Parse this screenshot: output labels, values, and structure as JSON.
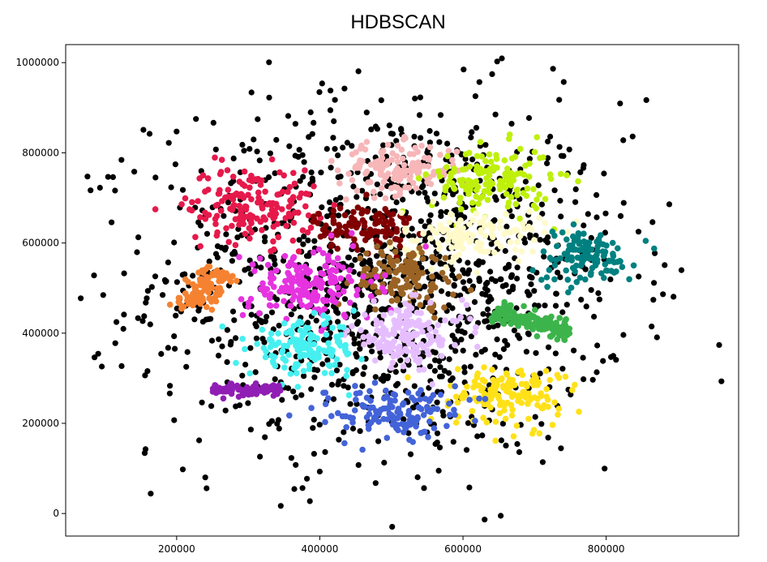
{
  "chart_data": {
    "type": "scatter",
    "title": "HDBSCAN",
    "xlim": [
      45000,
      985000
    ],
    "ylim": [
      -50000,
      1040000
    ],
    "x_ticks": [
      200000,
      400000,
      600000,
      800000
    ],
    "y_ticks": [
      0,
      200000,
      400000,
      600000,
      800000,
      1000000
    ],
    "x_tick_labels": [
      "200000",
      "400000",
      "600000",
      "800000"
    ],
    "y_tick_labels": [
      "0",
      "200000",
      "400000",
      "600000",
      "800000",
      "1000000"
    ],
    "grid": false,
    "noise_color": "#000000",
    "clusters": [
      {
        "id": "noise",
        "color": "#000000",
        "kind": "noise",
        "cx": 500000,
        "cy": 520000,
        "sx": 165000,
        "sy": 200000,
        "n": 1300
      },
      {
        "id": "c-pink-light",
        "color": "#f7b6b8",
        "kind": "blob",
        "cx": 510000,
        "cy": 765000,
        "sx": 42000,
        "sy": 28000,
        "n": 150
      },
      {
        "id": "c-lime",
        "color": "#bef00c",
        "kind": "blob",
        "cx": 640000,
        "cy": 740000,
        "sx": 42000,
        "sy": 38000,
        "n": 150
      },
      {
        "id": "c-crimson",
        "color": "#e6194b",
        "kind": "blob",
        "cx": 305000,
        "cy": 685000,
        "sx": 45000,
        "sy": 42000,
        "n": 170
      },
      {
        "id": "c-maroon",
        "color": "#800000",
        "kind": "blob",
        "cx": 462000,
        "cy": 635000,
        "sx": 35000,
        "sy": 25000,
        "n": 120
      },
      {
        "id": "c-cream",
        "color": "#fffac8",
        "kind": "blob",
        "cx": 615000,
        "cy": 615000,
        "sx": 50000,
        "sy": 28000,
        "n": 130
      },
      {
        "id": "c-teal",
        "color": "#008080",
        "kind": "blob",
        "cx": 770000,
        "cy": 570000,
        "sx": 35000,
        "sy": 30000,
        "n": 120
      },
      {
        "id": "c-brown",
        "color": "#9a6324",
        "kind": "blob",
        "cx": 520000,
        "cy": 525000,
        "sx": 35000,
        "sy": 35000,
        "n": 130
      },
      {
        "id": "c-magenta",
        "color": "#e633e0",
        "kind": "blob",
        "cx": 385000,
        "cy": 505000,
        "sx": 45000,
        "sy": 40000,
        "n": 180
      },
      {
        "id": "c-orange",
        "color": "#f58231",
        "kind": "line",
        "x0": 215000,
        "y0": 450000,
        "x1": 262000,
        "y1": 540000,
        "width": 12000,
        "n": 100
      },
      {
        "id": "c-green",
        "color": "#3cb44b",
        "kind": "line",
        "x0": 645000,
        "y0": 450000,
        "x1": 750000,
        "y1": 402000,
        "width": 11000,
        "n": 180
      },
      {
        "id": "c-lavender",
        "color": "#e6beff",
        "kind": "blob",
        "cx": 522000,
        "cy": 395000,
        "sx": 40000,
        "sy": 35000,
        "n": 150
      },
      {
        "id": "c-cyan",
        "color": "#46f0f0",
        "kind": "blob",
        "cx": 378000,
        "cy": 365000,
        "sx": 38000,
        "sy": 30000,
        "n": 140
      },
      {
        "id": "c-purple",
        "color": "#911eb4",
        "kind": "line",
        "x0": 250000,
        "y0": 275000,
        "x1": 345000,
        "y1": 275000,
        "width": 6000,
        "n": 110
      },
      {
        "id": "c-yellow",
        "color": "#ffe119",
        "kind": "blob",
        "cx": 660000,
        "cy": 265000,
        "sx": 40000,
        "sy": 35000,
        "n": 160
      },
      {
        "id": "c-blue",
        "color": "#4363d8",
        "kind": "blob",
        "cx": 505000,
        "cy": 225000,
        "sx": 42000,
        "sy": 25000,
        "n": 140
      }
    ]
  }
}
